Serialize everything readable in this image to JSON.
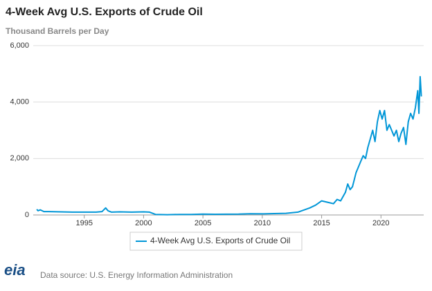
{
  "chart_data": {
    "type": "line",
    "title": "4-Week Avg U.S. Exports of Crude Oil",
    "subtitle": "Thousand Barrels per Day",
    "x": [
      1991.0,
      1991.1,
      1991.3,
      1991.6,
      1992,
      1993,
      1994,
      1995,
      1996,
      1996.5,
      1996.8,
      1997,
      1997.3,
      1998,
      1999,
      2000,
      2000.5,
      2001,
      2002,
      2003,
      2004,
      2005,
      2006,
      2007,
      2008,
      2009,
      2010,
      2011,
      2012,
      2013,
      2014,
      2014.5,
      2015,
      2015.5,
      2016,
      2016.3,
      2016.6,
      2017,
      2017.2,
      2017.4,
      2017.6,
      2017.9,
      2018.1,
      2018.3,
      2018.5,
      2018.7,
      2018.9,
      2019.1,
      2019.3,
      2019.5,
      2019.7,
      2019.9,
      2020.1,
      2020.3,
      2020.5,
      2020.7,
      2020.9,
      2021.1,
      2021.3,
      2021.5,
      2021.7,
      2021.9,
      2022.1,
      2022.3,
      2022.5,
      2022.7,
      2022.9,
      2023.1,
      2023.2,
      2023.3,
      2023.4
    ],
    "series": [
      {
        "name": "4-Week Avg U.S. Exports of Crude Oil",
        "color": "#0096d7",
        "values": [
          200,
          150,
          180,
          120,
          120,
          110,
          100,
          100,
          100,
          120,
          250,
          150,
          100,
          110,
          100,
          110,
          100,
          20,
          10,
          20,
          20,
          30,
          25,
          27,
          30,
          45,
          40,
          50,
          60,
          100,
          250,
          350,
          500,
          450,
          400,
          550,
          500,
          800,
          1100,
          900,
          1000,
          1500,
          1700,
          1900,
          2100,
          2000,
          2400,
          2700,
          3000,
          2600,
          3300,
          3700,
          3400,
          3700,
          3000,
          3200,
          3000,
          2800,
          3000,
          2600,
          2900,
          3100,
          2500,
          3300,
          3600,
          3400,
          3800,
          4400,
          3600,
          4900,
          4200
        ]
      }
    ],
    "xlim": [
      1990.7,
      2023.6
    ],
    "xticks": [
      1995,
      2000,
      2005,
      2010,
      2015,
      2020
    ],
    "ylim": [
      0,
      6000
    ],
    "yticks": [
      0,
      {
        "value": 2000,
        "label": "2,000"
      },
      {
        "value": 4000,
        "label": "4,000"
      },
      {
        "value": 6000,
        "label": "6,000"
      }
    ],
    "grid": true,
    "logo": "eia",
    "source": "Data source: U.S. Energy Information Administration"
  }
}
